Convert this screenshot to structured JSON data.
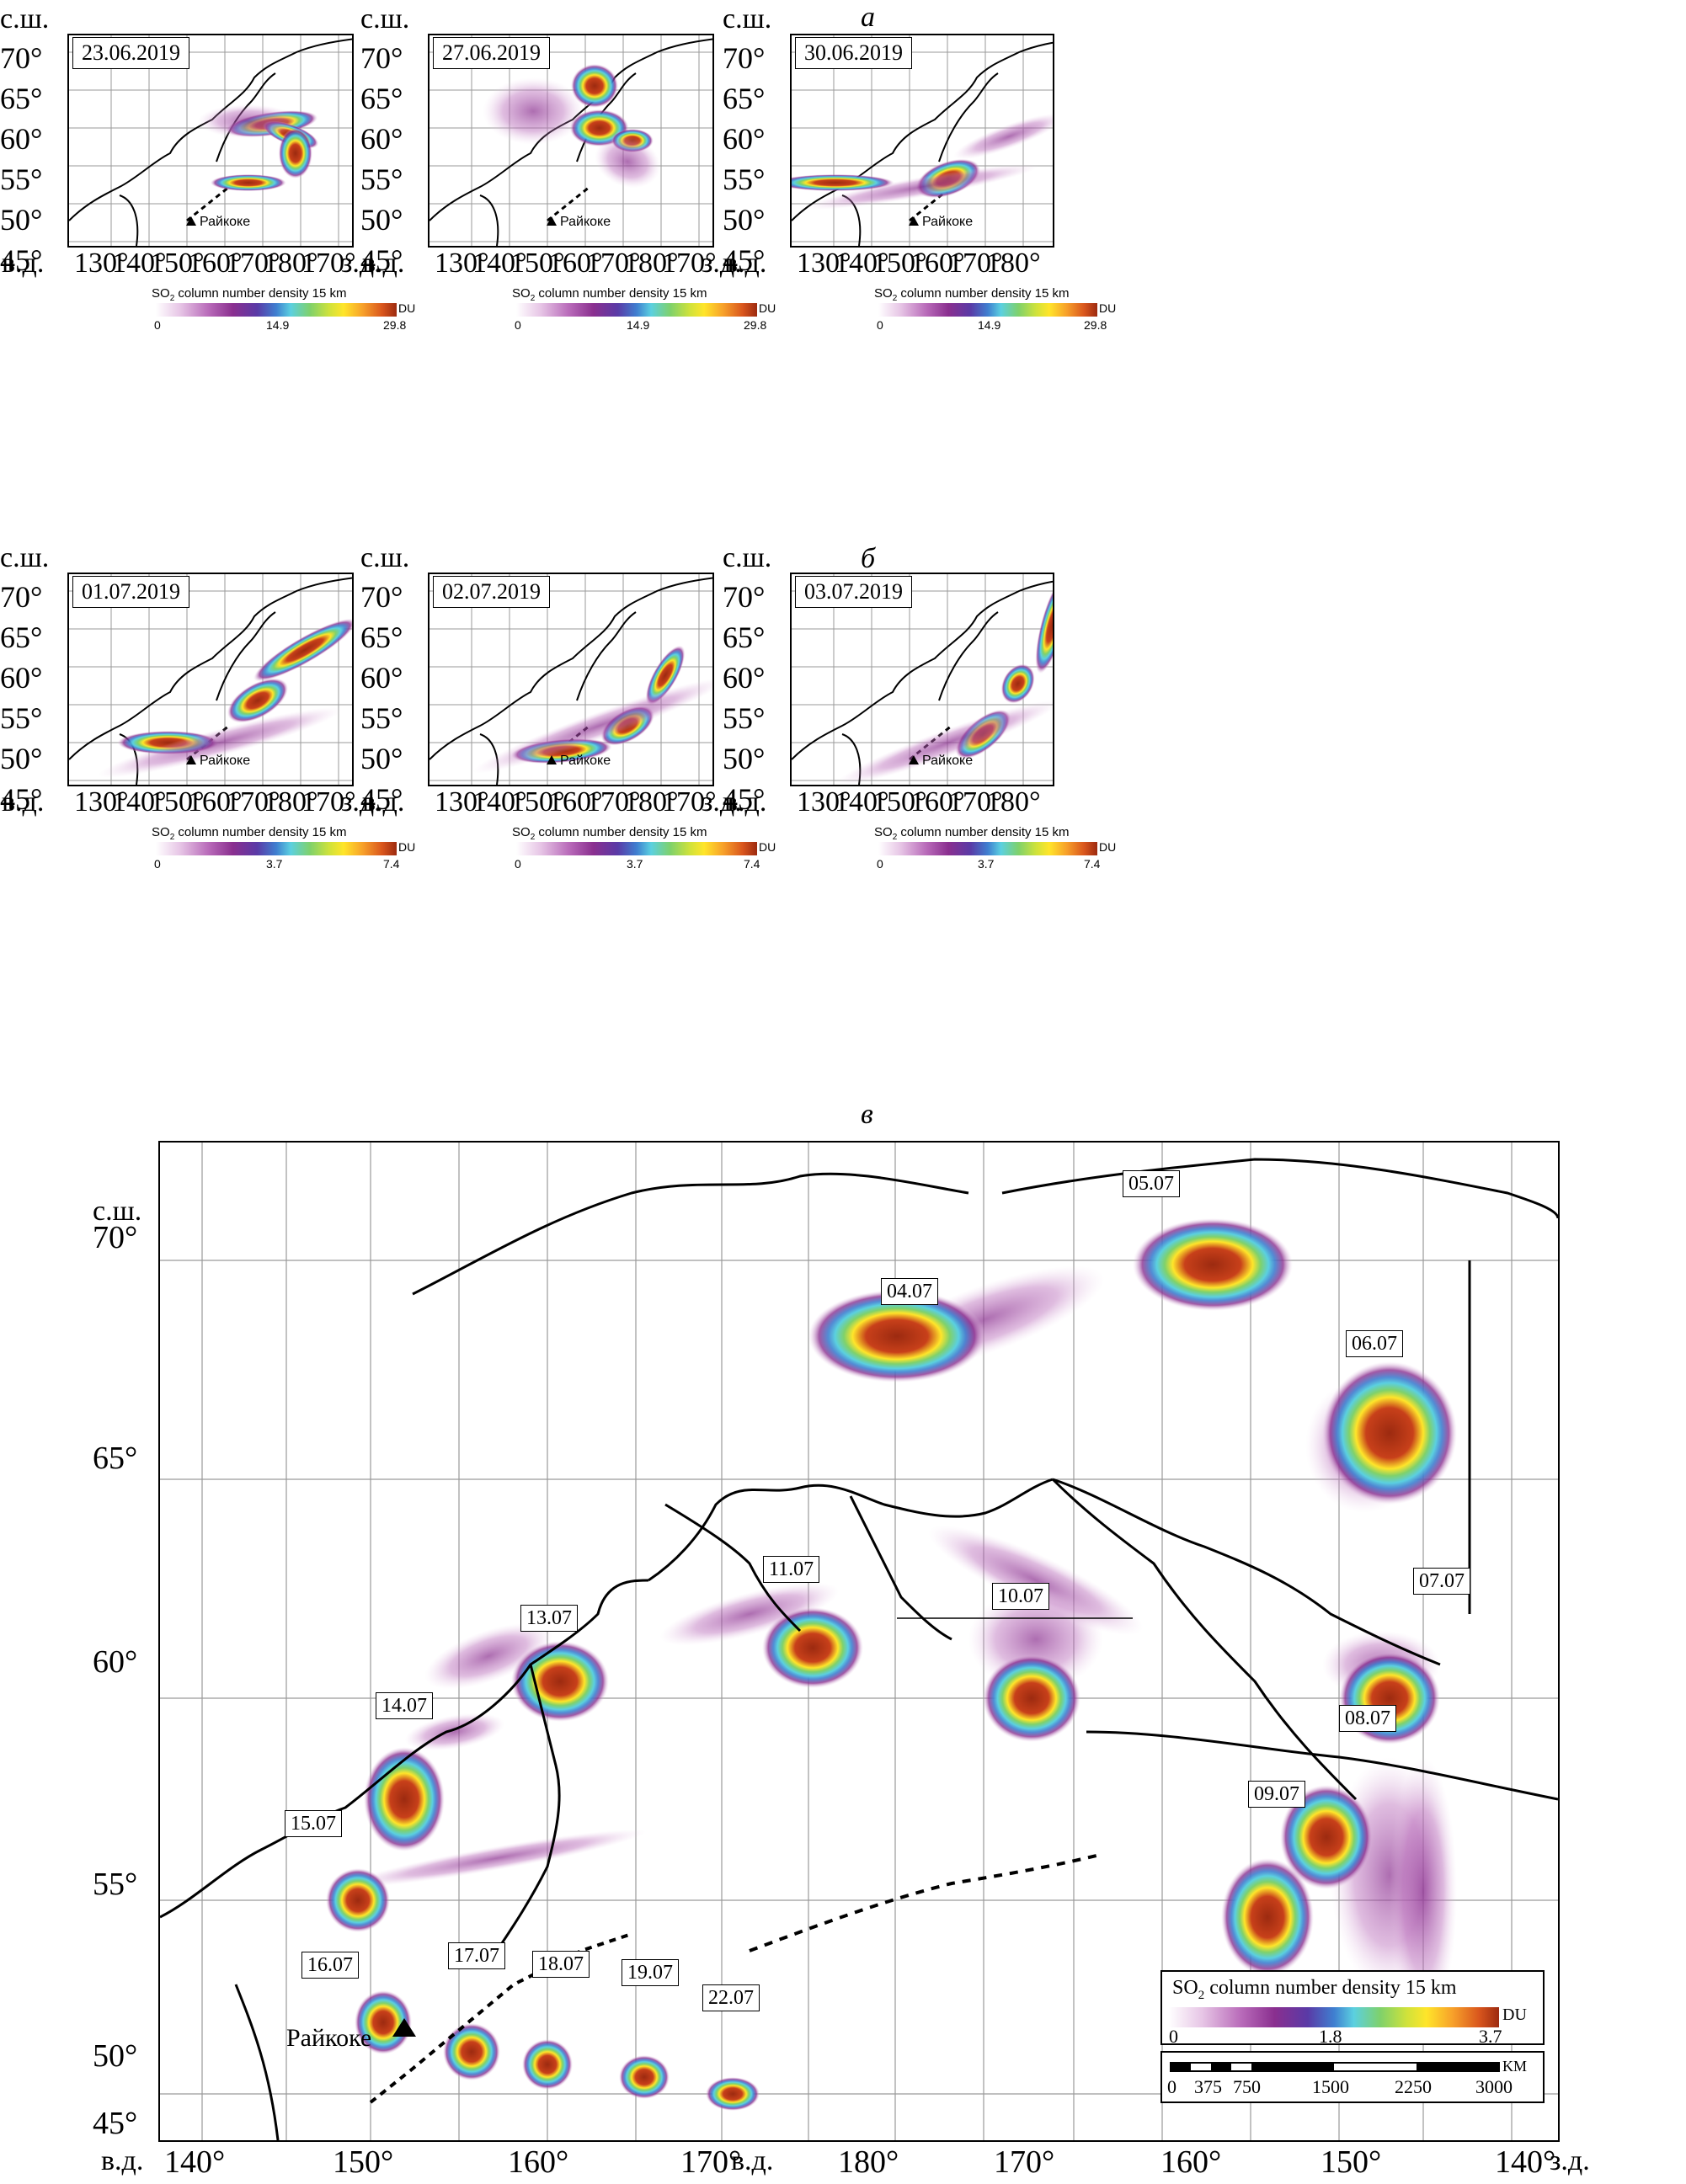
{
  "panel_letters": {
    "a": "а",
    "b": "б",
    "c": "в"
  },
  "axis_words": {
    "north": "с.ш.",
    "east": "в.д.",
    "west": "з.д."
  },
  "volcano": "Райкоке",
  "top_row": {
    "lat_ticks": [
      "70°",
      "65°",
      "60°",
      "55°",
      "50°",
      "45°"
    ],
    "maps": [
      {
        "date": "23.06.2019",
        "lon_ticks": [
          "130°",
          "140°",
          "150°",
          "160°",
          "170°",
          "180°",
          "170°"
        ],
        "has_west": true
      },
      {
        "date": "27.06.2019",
        "lon_ticks": [
          "130°",
          "140°",
          "150°",
          "160°",
          "170°",
          "180°",
          "170°"
        ],
        "has_west": true
      },
      {
        "date": "30.06.2019",
        "lon_ticks": [
          "130°",
          "140°",
          "150°",
          "160°",
          "170°",
          "180°"
        ],
        "has_west": false
      }
    ],
    "colorbar": {
      "title": "SO2 column number density 15 km",
      "unit": "DU",
      "ticks": [
        "0",
        "14.9",
        "29.8"
      ]
    }
  },
  "mid_row": {
    "lat_ticks": [
      "70°",
      "65°",
      "60°",
      "55°",
      "50°",
      "45°"
    ],
    "maps": [
      {
        "date": "01.07.2019",
        "lon_ticks": [
          "130°",
          "140°",
          "150°",
          "160°",
          "170°",
          "180°",
          "170°"
        ],
        "has_west": true
      },
      {
        "date": "02.07.2019",
        "lon_ticks": [
          "130°",
          "140°",
          "150°",
          "160°",
          "170°",
          "180°",
          "170°"
        ],
        "has_west": true
      },
      {
        "date": "03.07.2019",
        "lon_ticks": [
          "130°",
          "140°",
          "150°",
          "160°",
          "170°",
          "180°"
        ],
        "has_west": false
      }
    ],
    "colorbar": {
      "title": "SO2 column number density 15 km",
      "unit": "DU",
      "ticks": [
        "0",
        "3.7",
        "7.4"
      ]
    }
  },
  "big_map": {
    "lat_ticks": [
      "70°",
      "65°",
      "60°",
      "55°",
      "50°",
      "45°"
    ],
    "lon_east": [
      "140°",
      "150°",
      "160°",
      "170°"
    ],
    "lon_west": [
      "180°",
      "170°",
      "160°",
      "150°",
      "140°"
    ],
    "cloud_labels": [
      "04.07",
      "05.07",
      "06.07",
      "07.07",
      "08.07",
      "09.07",
      "10.07",
      "11.07",
      "13.07",
      "14.07",
      "15.07",
      "16.07",
      "17.07",
      "18.07",
      "19.07",
      "22.07"
    ],
    "legend": {
      "title": "SO2 column number density 15 km",
      "unit": "DU",
      "ticks": [
        "0",
        "1.8",
        "3.7"
      ]
    },
    "scale": {
      "unit": "KM",
      "ticks": [
        "0",
        "375",
        "750",
        "1500",
        "2250",
        "3000"
      ]
    }
  },
  "colors": {
    "plume_low": "#b86ab9",
    "plume_mid": "#3f7fd0",
    "plume_core": "#9c2a10",
    "grid": "#9a9a9a"
  }
}
